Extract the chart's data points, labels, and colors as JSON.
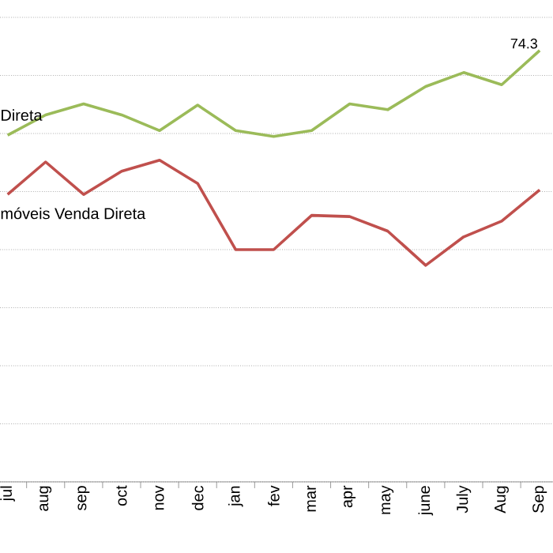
{
  "chart_data": {
    "type": "line",
    "grid": "y",
    "marker": "none",
    "line_style": "solid",
    "tick_labels": "x",
    "ylim": [
      0,
      80
    ],
    "yticks": [
      {
        "value": 0,
        "label": null
      },
      {
        "value": 10,
        "label": null
      },
      {
        "value": 20,
        "label": null
      },
      {
        "value": 30,
        "label": null
      },
      {
        "value": 40,
        "label": null
      },
      {
        "value": 50,
        "label": null
      },
      {
        "value": 60,
        "label": null
      },
      {
        "value": 70,
        "label": null
      },
      {
        "value": 80,
        "label": null
      }
    ],
    "categories": [
      "jul",
      "aug",
      "sep",
      "oct",
      "nov",
      "dec",
      "jan",
      "fev",
      "mar",
      "apr",
      "may",
      "june",
      "July",
      "Aug",
      "Sep"
    ],
    "series": [
      {
        "name": "Direta",
        "color": "#9bbb59",
        "values": [
          59.7,
          63.2,
          65.1,
          63.2,
          60.5,
          64.9,
          60.5,
          59.5,
          60.5,
          65.1,
          64.1,
          68.1,
          70.5,
          68.4,
          74.3
        ],
        "value_labels": [
          null,
          null,
          null,
          null,
          null,
          null,
          null,
          null,
          null,
          null,
          null,
          null,
          null,
          null,
          "74.3"
        ]
      },
      {
        "name": "móveis Venda Direta",
        "color": "#c0504d",
        "values": [
          49.5,
          55.1,
          49.5,
          53.5,
          55.4,
          51.4,
          40.0,
          40.0,
          45.9,
          45.7,
          43.2,
          37.3,
          42.2,
          44.9,
          50.3
        ]
      }
    ]
  }
}
